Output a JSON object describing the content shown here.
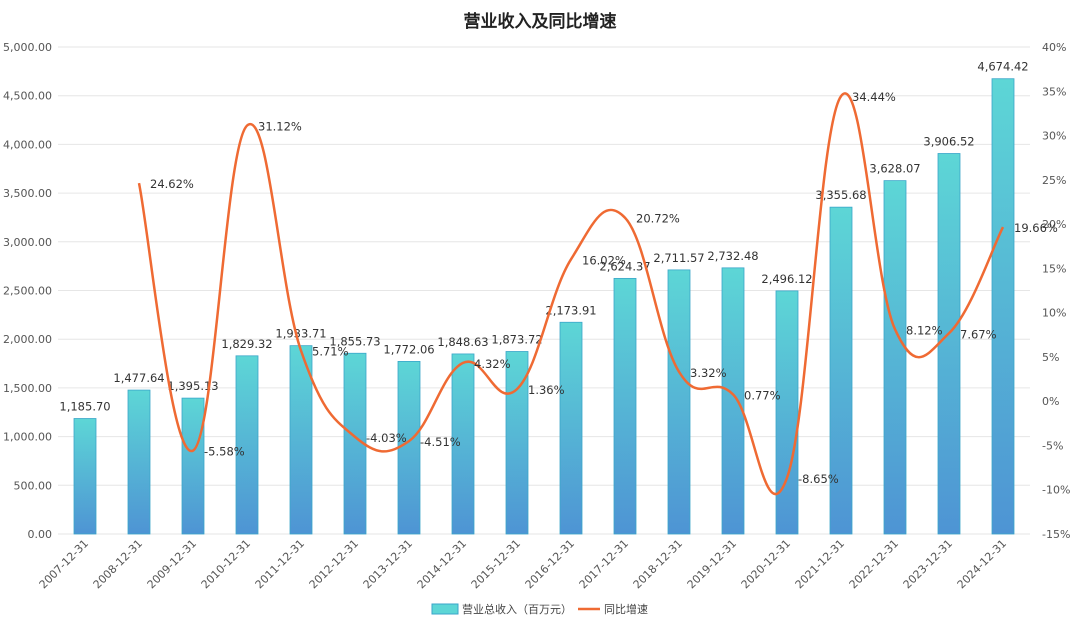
{
  "chart_data": {
    "type": "bar",
    "title": "营业收入及同比增速",
    "categories": [
      "2007-12-31",
      "2008-12-31",
      "2009-12-31",
      "2010-12-31",
      "2011-12-31",
      "2012-12-31",
      "2013-12-31",
      "2014-12-31",
      "2015-12-31",
      "2016-12-31",
      "2017-12-31",
      "2018-12-31",
      "2019-12-31",
      "2020-12-31",
      "2021-12-31",
      "2022-12-31",
      "2023-12-31",
      "2024-12-31"
    ],
    "series": [
      {
        "name": "营业总收入（百万元）",
        "type": "bar",
        "axis": "left",
        "values": [
          1185.7,
          1477.64,
          1395.13,
          1829.32,
          1933.71,
          1855.73,
          1772.06,
          1848.63,
          1873.72,
          2173.91,
          2624.37,
          2711.57,
          2732.48,
          2496.12,
          3355.68,
          3628.07,
          3906.52,
          4674.42
        ],
        "labels": [
          "1,185.70",
          "1,477.64",
          "1,395.13",
          "1,829.32",
          "1,933.71",
          "1,855.73",
          "1,772.06",
          "1,848.63",
          "1,873.72",
          "2,173.91",
          "2,624.37",
          "2,711.57",
          "2,732.48",
          "2,496.12",
          "3,355.68",
          "3,628.07",
          "3,906.52",
          "4,674.42"
        ]
      },
      {
        "name": "同比增速",
        "type": "line",
        "axis": "right",
        "values": [
          null,
          24.62,
          -5.58,
          31.12,
          5.71,
          -4.03,
          -4.51,
          4.32,
          1.36,
          16.02,
          20.72,
          3.32,
          0.77,
          -8.65,
          34.44,
          8.12,
          7.67,
          19.66
        ],
        "labels": [
          null,
          "24.62%",
          "-5.58%",
          "31.12%",
          "5.71%",
          "-4.03%",
          "-4.51%",
          "4.32%",
          "1.36%",
          "16.02%",
          "20.72%",
          "3.32%",
          "0.77%",
          "-8.65%",
          "34.44%",
          "8.12%",
          "7.67%",
          "19.66%"
        ]
      }
    ],
    "yleft": {
      "lim": [
        0,
        5000
      ],
      "ticks": [
        0,
        500,
        1000,
        1500,
        2000,
        2500,
        3000,
        3500,
        4000,
        4500,
        5000
      ],
      "tick_labels": [
        "0.00",
        "500.00",
        "1,000.00",
        "1,500.00",
        "2,000.00",
        "2,500.00",
        "3,000.00",
        "3,500.00",
        "4,000.00",
        "4,500.00",
        "5,000.00"
      ]
    },
    "yright": {
      "lim": [
        -15,
        40
      ],
      "ticks": [
        -15,
        -10,
        -5,
        0,
        5,
        10,
        15,
        20,
        25,
        30,
        35,
        40
      ],
      "tick_labels": [
        "-15%",
        "-10%",
        "-5%",
        "0%",
        "5%",
        "10%",
        "15%",
        "20%",
        "25%",
        "30%",
        "35%",
        "40%"
      ]
    },
    "legend": {
      "position": "bottom-center",
      "items": [
        "营业总收入（百万元）",
        "同比增速"
      ]
    },
    "grid": true,
    "colors": {
      "bar_top": "#5dd6d6",
      "bar_bottom": "#4e94d4",
      "bar_border": "#3aa6c9",
      "line": "#ef6a33",
      "grid": "#e6e6e6"
    }
  }
}
